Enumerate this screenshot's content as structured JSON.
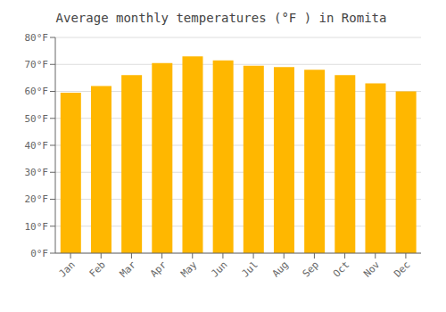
{
  "chart_data": {
    "type": "bar",
    "title": "Average monthly temperatures (°F ) in Romita",
    "categories": [
      "Jan",
      "Feb",
      "Mar",
      "Apr",
      "May",
      "Jun",
      "Jul",
      "Aug",
      "Sep",
      "Oct",
      "Nov",
      "Dec"
    ],
    "values": [
      59.5,
      62.0,
      66.0,
      70.5,
      73.0,
      71.5,
      69.5,
      69.0,
      68.0,
      66.0,
      63.0,
      60.0
    ],
    "color": "#FFB700",
    "ylim": [
      0,
      80
    ],
    "yticks": [
      {
        "value": 0,
        "label": "0°F"
      },
      {
        "value": 10,
        "label": "10°F"
      },
      {
        "value": 20,
        "label": "20°F"
      },
      {
        "value": 30,
        "label": "30°F"
      },
      {
        "value": 40,
        "label": "40°F"
      },
      {
        "value": 50,
        "label": "50°F"
      },
      {
        "value": 60,
        "label": "60°F"
      },
      {
        "value": 70,
        "label": "70°F"
      },
      {
        "value": 80,
        "label": "80°F"
      }
    ],
    "grid": true
  }
}
